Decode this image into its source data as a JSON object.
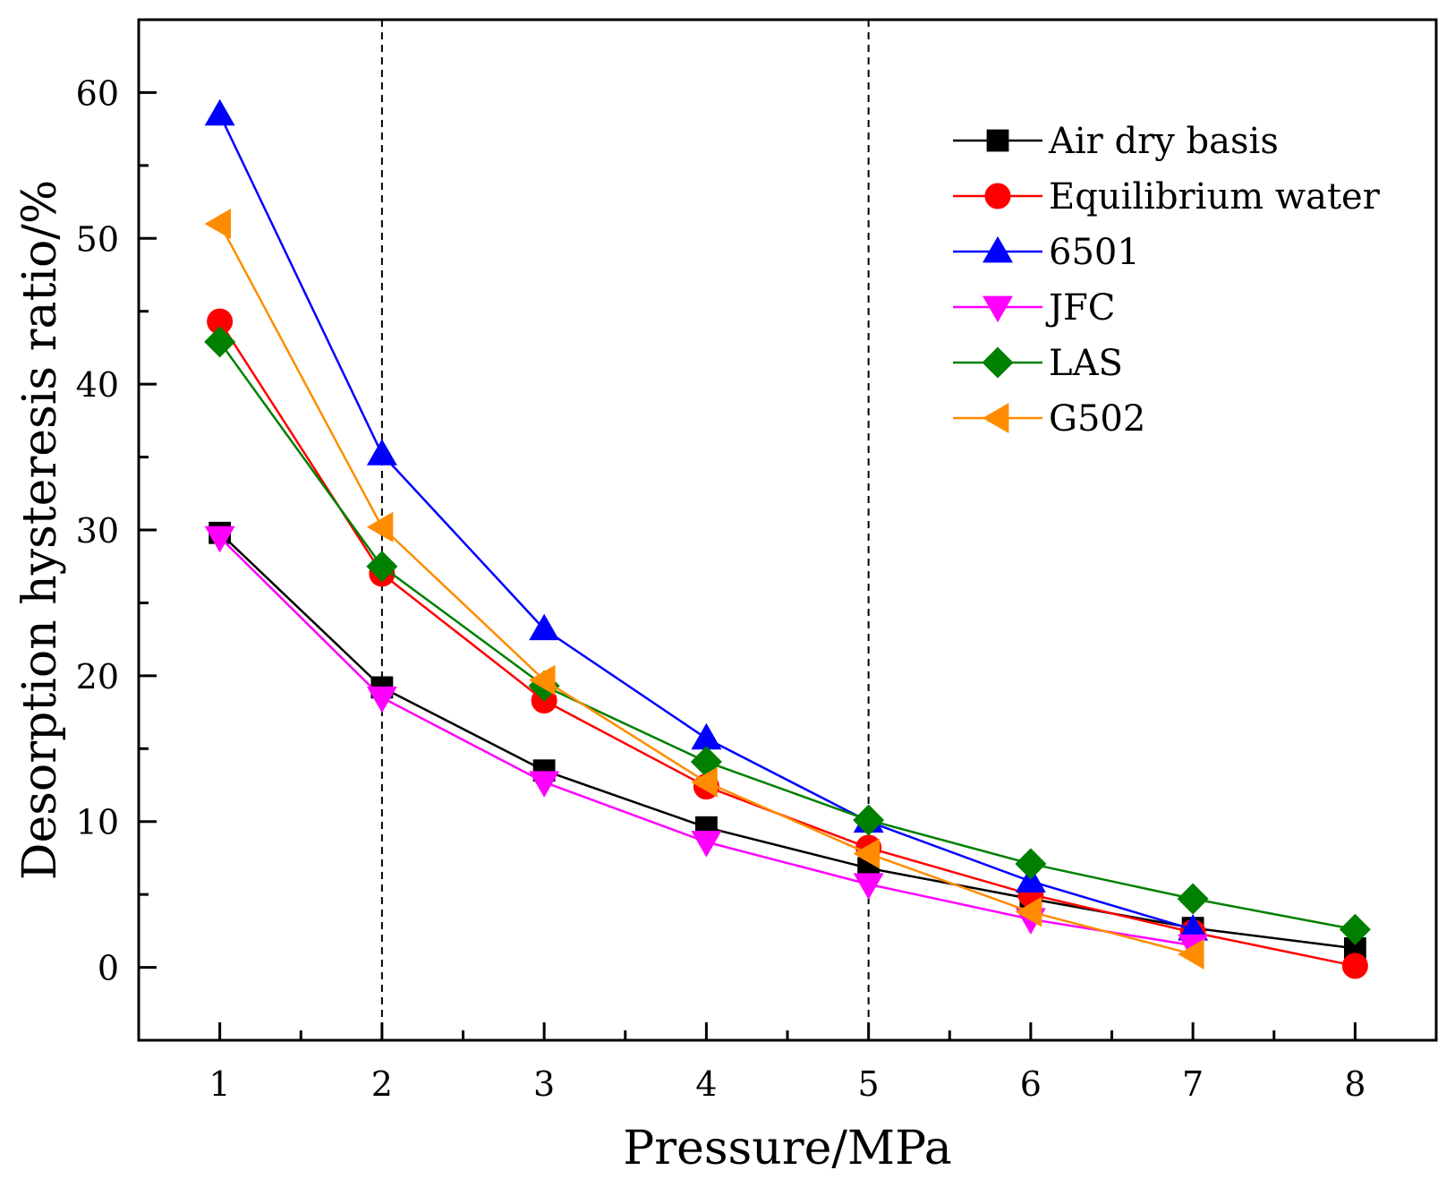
{
  "chart_data": {
    "type": "line",
    "xlabel": "Pressure/MPa",
    "ylabel": "Desorption hysteresis ratio/%",
    "xlim": [
      0.5,
      8.5
    ],
    "ylim": [
      -5,
      65
    ],
    "x_ticks": [
      1,
      2,
      3,
      4,
      5,
      6,
      7,
      8
    ],
    "y_ticks": [
      0,
      10,
      20,
      30,
      40,
      50,
      60
    ],
    "reference_lines_x": [
      2,
      5
    ],
    "legend_position": "top-right",
    "grid": false,
    "x": [
      1,
      2,
      3,
      4,
      5,
      6,
      7,
      8
    ],
    "series": [
      {
        "name": "Air dry basis",
        "color": "#000000",
        "marker": "square",
        "values": [
          29.8,
          19.2,
          13.5,
          9.6,
          6.8,
          4.7,
          2.7,
          1.3
        ]
      },
      {
        "name": "Equilibrium water",
        "color": "#ff0000",
        "marker": "circle",
        "values": [
          44.3,
          27.0,
          18.3,
          12.4,
          8.2,
          5.0,
          2.4,
          0.1
        ]
      },
      {
        "name": "6501",
        "color": "#0000ff",
        "marker": "triangle-up",
        "values": [
          58.5,
          35.2,
          23.2,
          15.7,
          10.0,
          5.9,
          2.6,
          null
        ]
      },
      {
        "name": "JFC",
        "color": "#ff00ff",
        "marker": "triangle-down",
        "values": [
          29.5,
          18.5,
          12.7,
          8.6,
          5.7,
          3.3,
          1.5,
          null
        ]
      },
      {
        "name": "LAS",
        "color": "#008000",
        "marker": "diamond",
        "values": [
          42.9,
          27.5,
          19.3,
          14.1,
          10.1,
          7.1,
          4.7,
          2.6
        ]
      },
      {
        "name": "G502",
        "color": "#ff8c00",
        "marker": "triangle-left",
        "values": [
          51.0,
          30.2,
          19.7,
          12.7,
          7.8,
          3.8,
          0.9,
          null
        ]
      }
    ]
  }
}
